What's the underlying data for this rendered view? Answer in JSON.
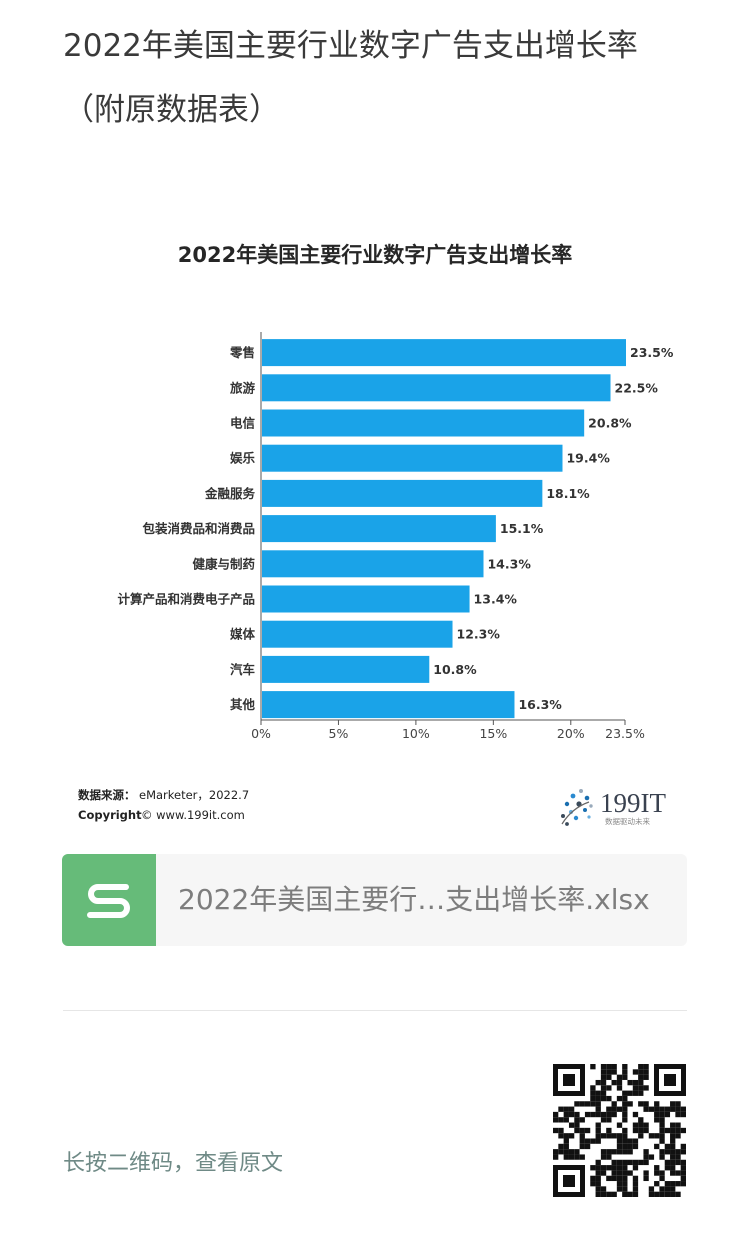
{
  "article": {
    "title": "2022年美国主要行业数字广告支出增长率（附原数据表）"
  },
  "chart_data": {
    "type": "bar",
    "orientation": "horizontal",
    "title": "2022年美国主要行业数字广告支出增长率",
    "categories": [
      "零售",
      "旅游",
      "电信",
      "娱乐",
      "金融服务",
      "包装消费品和消费品",
      "健康与制药",
      "计算产品和消费电子产品",
      "媒体",
      "汽车",
      "其他"
    ],
    "values": [
      23.5,
      22.5,
      20.8,
      19.4,
      18.1,
      15.1,
      14.3,
      13.4,
      12.3,
      10.8,
      16.3
    ],
    "value_labels": [
      "23.5%",
      "22.5%",
      "20.8%",
      "19.4%",
      "18.1%",
      "15.1%",
      "14.3%",
      "13.4%",
      "12.3%",
      "10.8%",
      "16.3%"
    ],
    "xlim": [
      0,
      23.5
    ],
    "ticks": [
      0,
      5,
      10,
      15,
      20,
      23.5
    ],
    "tick_labels": [
      "0%",
      "5%",
      "10%",
      "15%",
      "20%",
      "23.5%"
    ],
    "grid": false,
    "bar_color": "#1aa3e8"
  },
  "source": {
    "label": "数据来源：",
    "text": "eMarketer，2022.7",
    "copyright_label": "Copyright",
    "copyright_text": "© www.199it.com"
  },
  "logo": {
    "text": "199IT",
    "slogan": "数据驱动未来"
  },
  "file_card": {
    "icon": "spreadsheet-s-icon",
    "icon_color": "#66bb79",
    "name": "2022年美国主要行…支出增长率.xlsx"
  },
  "qr": {
    "hint": "长按二维码，查看原文",
    "icon": "qr-code-icon"
  }
}
